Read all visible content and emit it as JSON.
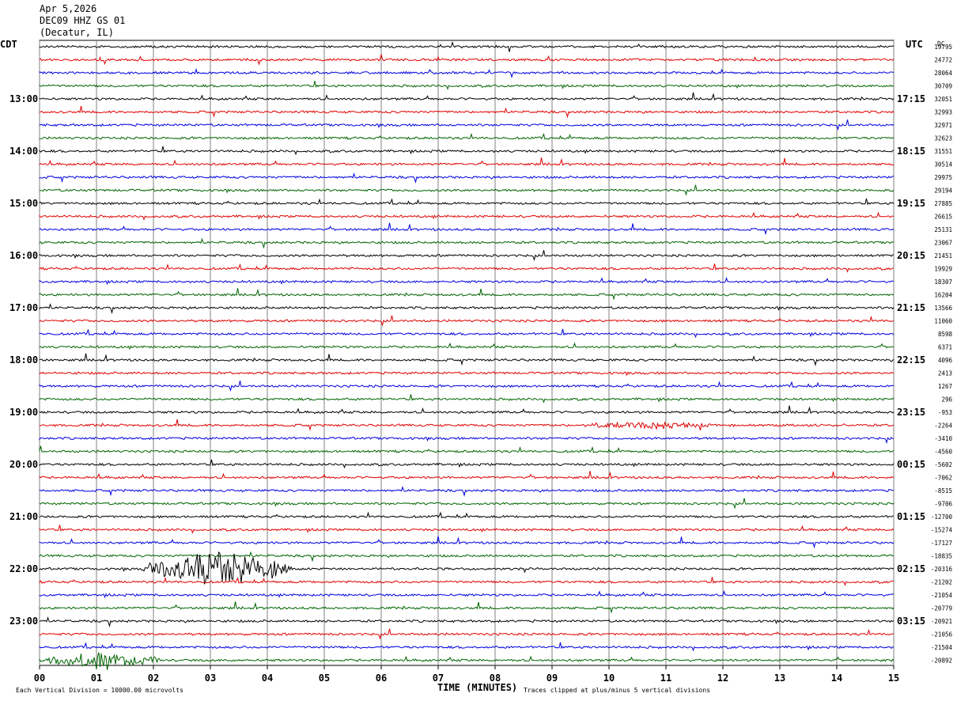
{
  "header": {
    "date": "Apr 5,2026",
    "station": "DEC09 HHZ GS 01",
    "location": "(Decatur, IL)"
  },
  "left_tz": "CDT",
  "right_tz": "UTC",
  "dc_label": "DC",
  "footer": {
    "scale": "Each Vertical Division = 10000.00 microvolts",
    "clip": "Traces clipped at plus/minus 5 vertical divisions"
  },
  "colors": {
    "line1": "#000000",
    "line2": "#e00000",
    "line3": "#0000e0",
    "line4": "#006400",
    "grid": "#808080"
  },
  "chart_data": {
    "type": "line",
    "xlabel": "TIME (MINUTES)",
    "xlim": [
      0,
      15
    ],
    "x_ticks": [
      "00",
      "01",
      "02",
      "03",
      "04",
      "05",
      "06",
      "07",
      "08",
      "09",
      "10",
      "11",
      "12",
      "13",
      "14",
      "15"
    ],
    "traces_per_hour": 4,
    "trace_minutes": 15,
    "left_hour_labels": [
      "13:00",
      "14:00",
      "15:00",
      "16:00",
      "17:00",
      "18:00",
      "19:00",
      "20:00",
      "21:00",
      "22:00",
      "23:00"
    ],
    "right_hour_labels": [
      "17:15",
      "18:15",
      "19:15",
      "20:15",
      "21:15",
      "22:15",
      "23:15",
      "00:15",
      "01:15",
      "02:15",
      "03:15"
    ],
    "dc_offsets": [
      "19795",
      "24772",
      "28064",
      "30709",
      "32051",
      "32993",
      "32971",
      "32623",
      "31551",
      "30514",
      "29975",
      "29194",
      "27885",
      "26615",
      "25131",
      "23067",
      "21451",
      "19929",
      "18307",
      "16204",
      "13566",
      "11060",
      "8598",
      "6371",
      "4096",
      "2413",
      "1267",
      "296",
      "-953",
      "-2264",
      "-3410",
      "-4560",
      "-5602",
      "-7062",
      "-8515",
      "-9706",
      "-12700",
      "-15274",
      "-17127",
      "-18835",
      "-20316",
      "-21202",
      "-21054",
      "-20779",
      "-20921",
      "-21056",
      "-21504",
      "-20892"
    ],
    "events": [
      {
        "trace": 40,
        "start_min": 1.8,
        "end_min": 4.5,
        "amplitude": "large"
      },
      {
        "trace": 47,
        "start_min": 0.0,
        "end_min": 2.2,
        "amplitude": "medium"
      },
      {
        "trace": 29,
        "start_min": 9.5,
        "end_min": 12.0,
        "amplitude": "small"
      }
    ]
  }
}
